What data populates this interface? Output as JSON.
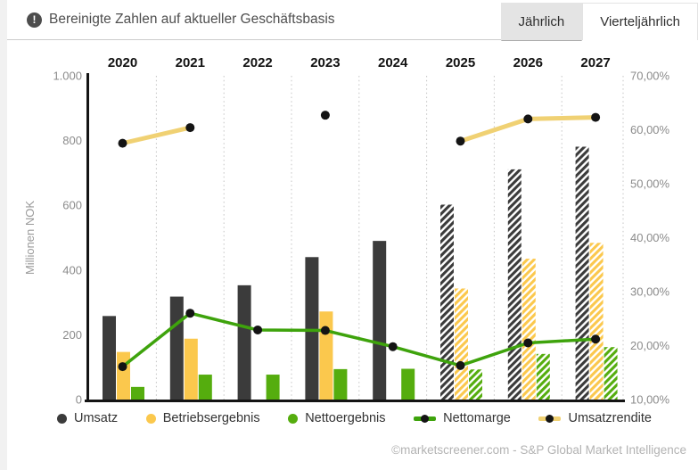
{
  "header": {
    "notice": "Bereinigte Zahlen auf aktueller Geschäftsbasis",
    "icon": "alert-circle-icon"
  },
  "tabs": [
    {
      "label": "Jährlich",
      "selected": true
    },
    {
      "label": "Vierteljährlich",
      "selected": false
    }
  ],
  "chart_data": {
    "type": "bar+line combo",
    "categories": [
      "2020",
      "2021",
      "2022",
      "2023",
      "2024",
      "2025",
      "2026",
      "2027"
    ],
    "estimate_flags": [
      false,
      false,
      false,
      false,
      false,
      true,
      true,
      true
    ],
    "left_axis": {
      "title": "Millionen NOK",
      "min": 0,
      "max": 1000,
      "ticks": [
        0,
        200,
        400,
        600,
        800,
        1000
      ],
      "tick_labels": [
        "0",
        "200",
        "400",
        "600",
        "800",
        "1.000"
      ]
    },
    "right_axis": {
      "min": 10,
      "max": 70,
      "ticks": [
        10,
        20,
        30,
        40,
        50,
        60,
        70
      ],
      "tick_labels": [
        "10,00%",
        "20,00%",
        "30,00%",
        "40,00%",
        "50,00%",
        "60,00%",
        "70,00%"
      ]
    },
    "bar_series": [
      {
        "name": "Umsatz",
        "color": "#3b3b3b",
        "values": [
          258,
          318,
          353,
          440,
          490,
          602,
          711,
          781
        ]
      },
      {
        "name": "Betriebsergebnis",
        "color": "#fbc84d",
        "values": [
          147,
          188,
          null,
          272,
          null,
          343,
          435,
          484
        ]
      },
      {
        "name": "Nettoergebnis",
        "color": "#55ad0e",
        "values": [
          39,
          77,
          77,
          94,
          95,
          93,
          141,
          162
        ]
      }
    ],
    "line_series": [
      {
        "name": "Nettomarge",
        "color": "#3ea30c",
        "width": 3.5,
        "values": [
          16.1,
          26.0,
          22.9,
          22.8,
          19.8,
          16.3,
          20.5,
          21.2
        ]
      },
      {
        "name": "Umsatzrendite",
        "color": "#f0d173",
        "width": 5,
        "values": [
          57.5,
          60.4,
          null,
          62.7,
          null,
          57.9,
          62.0,
          62.3
        ]
      }
    ],
    "grid": "vertical dotted separators between year groups",
    "legend_position": "bottom"
  },
  "footer": {
    "credit": "©marketscreener.com - S&P Global Market Intelligence"
  }
}
